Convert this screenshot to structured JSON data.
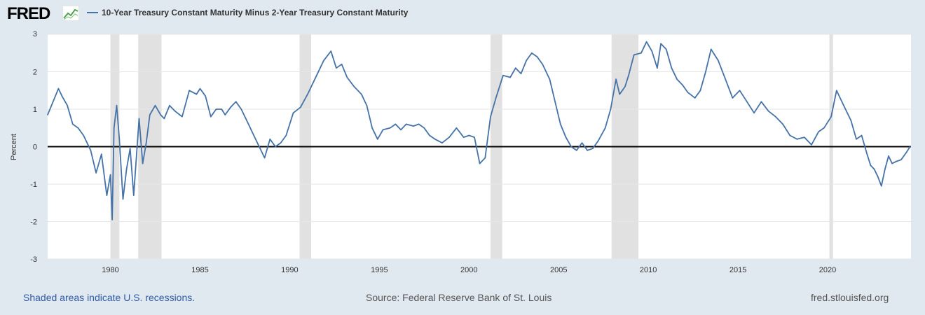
{
  "branding": {
    "logo_text": "FRED",
    "logo_icon": "line-chart-icon"
  },
  "footer": {
    "recession_note": "Shaded areas indicate U.S. recessions.",
    "source": "Source: Federal Reserve Bank of St. Louis",
    "site": "fred.stlouisfed.org"
  },
  "colors": {
    "series": "#4572a7",
    "recession": "#e1e1e1",
    "zero_line": "#000000",
    "background": "#e1e9f0"
  },
  "chart_data": {
    "type": "line",
    "title": "",
    "ylabel": "Percent",
    "xlabel": "",
    "xlim": [
      1976.5,
      2024.65
    ],
    "ylim": [
      -3,
      3
    ],
    "y_ticks": [
      -3,
      -2,
      -1,
      0,
      1,
      2,
      3
    ],
    "x_ticks": [
      1980,
      1985,
      1990,
      1995,
      2000,
      2005,
      2010,
      2015,
      2020
    ],
    "legend_position": "top-left",
    "recessions": [
      [
        1980.0,
        1980.5
      ],
      [
        1981.55,
        1982.85
      ],
      [
        1990.55,
        1991.2
      ],
      [
        2001.2,
        2001.85
      ],
      [
        2007.95,
        2009.45
      ],
      [
        2020.1,
        2020.3
      ]
    ],
    "series": [
      {
        "name": "10-Year Treasury Constant Maturity Minus 2-Year Treasury Constant Maturity",
        "x": [
          1976.5,
          1976.8,
          1977.1,
          1977.3,
          1977.6,
          1977.9,
          1978.2,
          1978.5,
          1978.9,
          1979.2,
          1979.5,
          1979.8,
          1980.0,
          1980.1,
          1980.2,
          1980.35,
          1980.5,
          1980.7,
          1980.9,
          1981.1,
          1981.3,
          1981.6,
          1981.8,
          1982.0,
          1982.2,
          1982.5,
          1982.8,
          1983.0,
          1983.3,
          1983.6,
          1984.0,
          1984.4,
          1984.8,
          1985.0,
          1985.3,
          1985.6,
          1985.9,
          1986.2,
          1986.4,
          1986.7,
          1987.0,
          1987.3,
          1987.7,
          1988.0,
          1988.3,
          1988.6,
          1988.9,
          1989.2,
          1989.5,
          1989.8,
          1990.2,
          1990.6,
          1991.0,
          1991.5,
          1991.9,
          1992.3,
          1992.6,
          1992.9,
          1993.2,
          1993.6,
          1994.0,
          1994.3,
          1994.6,
          1994.9,
          1995.2,
          1995.6,
          1995.9,
          1996.2,
          1996.5,
          1996.9,
          1997.2,
          1997.5,
          1997.8,
          1998.1,
          1998.5,
          1998.9,
          1999.3,
          1999.7,
          2000.0,
          2000.3,
          2000.6,
          2000.9,
          2001.2,
          2001.5,
          2001.9,
          2002.3,
          2002.6,
          2002.9,
          2003.2,
          2003.5,
          2003.8,
          2004.1,
          2004.5,
          2004.8,
          2005.1,
          2005.4,
          2005.7,
          2006.0,
          2006.3,
          2006.6,
          2006.9,
          2007.2,
          2007.6,
          2007.9,
          2008.2,
          2008.4,
          2008.7,
          2008.9,
          2009.2,
          2009.6,
          2009.9,
          2010.2,
          2010.5,
          2010.7,
          2011.0,
          2011.3,
          2011.6,
          2011.9,
          2012.2,
          2012.6,
          2012.9,
          2013.2,
          2013.5,
          2013.9,
          2014.3,
          2014.7,
          2015.1,
          2015.5,
          2015.9,
          2016.3,
          2016.7,
          2017.1,
          2017.5,
          2017.9,
          2018.3,
          2018.7,
          2019.1,
          2019.5,
          2019.8,
          2020.2,
          2020.5,
          2020.9,
          2021.3,
          2021.6,
          2021.9,
          2022.2,
          2022.4,
          2022.6,
          2022.8,
          2023.0,
          2023.2,
          2023.4,
          2023.6,
          2023.8,
          2024.1,
          2024.4,
          2024.6
        ],
        "values": [
          0.85,
          1.2,
          1.55,
          1.35,
          1.1,
          0.6,
          0.5,
          0.3,
          -0.1,
          -0.7,
          -0.2,
          -1.3,
          -0.75,
          -1.95,
          0.5,
          1.1,
          0.2,
          -1.4,
          -0.6,
          -0.05,
          -1.3,
          0.75,
          -0.45,
          0.1,
          0.85,
          1.1,
          0.85,
          0.75,
          1.1,
          0.95,
          0.8,
          1.5,
          1.4,
          1.55,
          1.35,
          0.8,
          1.0,
          1.0,
          0.85,
          1.05,
          1.2,
          1.0,
          0.6,
          0.3,
          0.0,
          -0.3,
          0.2,
          0.0,
          0.1,
          0.3,
          0.9,
          1.05,
          1.4,
          1.9,
          2.3,
          2.55,
          2.1,
          2.2,
          1.85,
          1.6,
          1.4,
          1.1,
          0.5,
          0.2,
          0.45,
          0.5,
          0.6,
          0.45,
          0.6,
          0.55,
          0.6,
          0.5,
          0.3,
          0.2,
          0.1,
          0.25,
          0.5,
          0.25,
          0.3,
          0.25,
          -0.45,
          -0.3,
          0.8,
          1.3,
          1.9,
          1.85,
          2.1,
          1.95,
          2.3,
          2.5,
          2.4,
          2.2,
          1.8,
          1.2,
          0.6,
          0.25,
          0.0,
          -0.1,
          0.1,
          -0.1,
          -0.05,
          0.15,
          0.5,
          1.0,
          1.8,
          1.4,
          1.6,
          1.9,
          2.45,
          2.5,
          2.8,
          2.55,
          2.1,
          2.75,
          2.6,
          2.1,
          1.8,
          1.65,
          1.45,
          1.3,
          1.5,
          2.0,
          2.6,
          2.3,
          1.8,
          1.3,
          1.5,
          1.2,
          0.9,
          1.2,
          0.95,
          0.8,
          0.6,
          0.3,
          0.2,
          0.25,
          0.05,
          0.4,
          0.5,
          0.8,
          1.5,
          1.1,
          0.7,
          0.2,
          0.3,
          -0.2,
          -0.5,
          -0.6,
          -0.8,
          -1.05,
          -0.6,
          -0.25,
          -0.45,
          -0.4,
          -0.35,
          -0.15,
          0.0
        ]
      }
    ]
  }
}
